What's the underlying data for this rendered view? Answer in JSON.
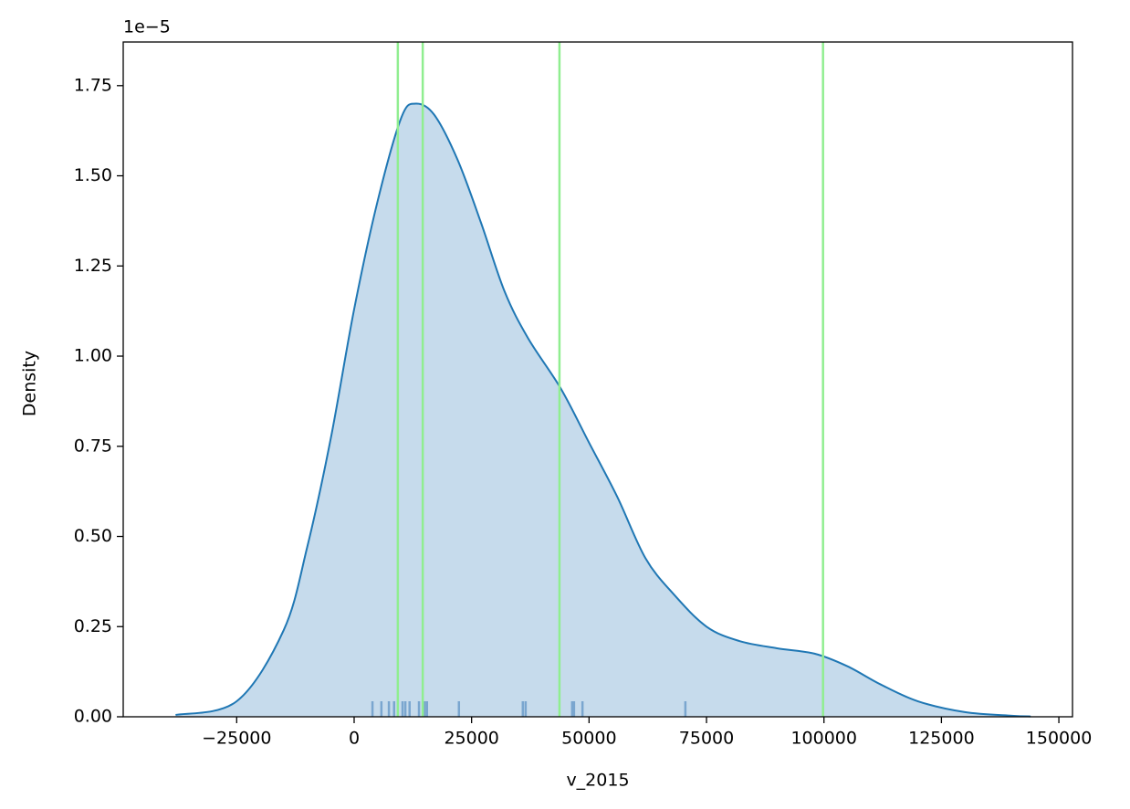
{
  "chart_data": {
    "type": "kde",
    "x_label": "v_2015",
    "y_label": "Density",
    "y_offset_label": "1e−5",
    "x": [
      -38000,
      -25000,
      -15000,
      -10000,
      -5000,
      0,
      5000,
      10000,
      13000,
      17000,
      22000,
      27000,
      32000,
      37000,
      44000,
      50000,
      56000,
      62000,
      68000,
      75000,
      82000,
      90000,
      98000,
      105000,
      112000,
      120000,
      130000,
      140000,
      144000
    ],
    "values": [
      0.005,
      0.043,
      0.24,
      0.47,
      0.77,
      1.13,
      1.43,
      1.66,
      1.7,
      1.67,
      1.545,
      1.37,
      1.18,
      1.05,
      0.91,
      0.76,
      0.61,
      0.44,
      0.34,
      0.25,
      0.21,
      0.19,
      0.175,
      0.14,
      0.09,
      0.043,
      0.013,
      0.003,
      0.001
    ],
    "color": "#1f77b4",
    "fill_color": "#c6dbec",
    "vlines": [
      9300,
      14600,
      43700,
      99800
    ],
    "vline_color": "#90ee90",
    "rug": [
      3900,
      5800,
      7400,
      8500,
      10300,
      10900,
      11800,
      13800,
      15000,
      15500,
      22300,
      35900,
      36500,
      46400,
      46800,
      48600,
      70500
    ],
    "rug_color": "#7aa6cf",
    "xlim": [
      -49150,
      152900
    ],
    "ylim": [
      0,
      1.871
    ],
    "xticks": [
      {
        "value": -25000,
        "label": "−25000"
      },
      0,
      25000,
      50000,
      75000,
      100000,
      125000,
      150000
    ],
    "yticks": [
      {
        "value": 0,
        "label": "0.00"
      },
      0.25,
      {
        "value": 0.5,
        "label": "0.50"
      },
      0.75,
      {
        "value": 1,
        "label": "1.00"
      },
      1.25,
      {
        "value": 1.5,
        "label": "1.50"
      },
      1.75
    ]
  }
}
